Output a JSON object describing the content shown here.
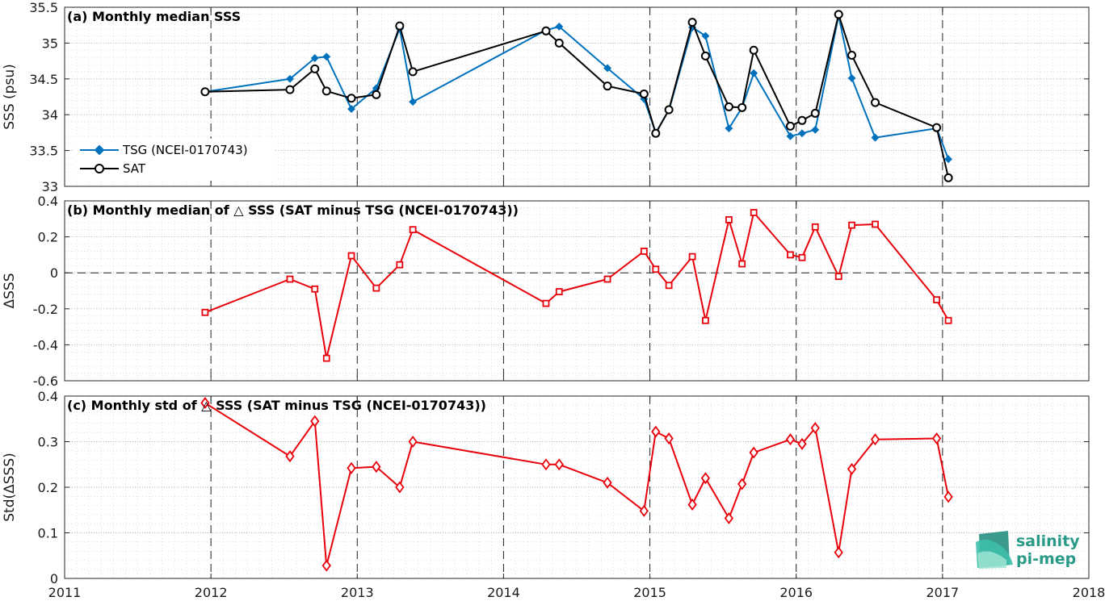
{
  "chart_data": [
    {
      "type": "line",
      "title": "(a) Monthly median SSS",
      "ylabel": "SSS (psu)",
      "xlim": [
        2011,
        2018
      ],
      "ylim": [
        33,
        35.5
      ],
      "yticks": [
        "33",
        "33.5",
        "34",
        "34.5",
        "35",
        "35.5"
      ],
      "ytick_values": [
        33,
        33.5,
        34,
        34.5,
        35,
        35.5
      ],
      "legend_position": "bottom-left",
      "series": [
        {
          "name": "TSG (NCEI-0170743)",
          "color": "#0072bd",
          "marker": "diamond",
          "x": [
            2011.96,
            2012.54,
            2012.71,
            2012.79,
            2012.96,
            2013.13,
            2013.29,
            2013.38,
            2014.29,
            2014.38,
            2014.71,
            2014.96,
            2015.04,
            2015.13,
            2015.29,
            2015.38,
            2015.54,
            2015.63,
            2015.71,
            2015.96,
            2016.04,
            2016.13,
            2016.29,
            2016.38,
            2016.54,
            2016.96,
            2017.04
          ],
          "y": [
            34.32,
            34.5,
            34.79,
            34.81,
            34.08,
            34.37,
            35.2,
            34.18,
            35.18,
            35.23,
            34.65,
            34.22,
            33.75,
            34.06,
            35.22,
            35.1,
            33.81,
            34.1,
            34.58,
            33.7,
            33.74,
            33.79,
            35.38,
            34.51,
            33.68,
            33.81,
            33.38
          ]
        },
        {
          "name": "SAT",
          "color": "#000000",
          "marker": "circle",
          "x": [
            2011.96,
            2012.54,
            2012.71,
            2012.79,
            2012.96,
            2013.13,
            2013.29,
            2013.38,
            2014.29,
            2014.38,
            2014.71,
            2014.96,
            2015.04,
            2015.13,
            2015.29,
            2015.38,
            2015.54,
            2015.63,
            2015.71,
            2015.96,
            2016.04,
            2016.13,
            2016.29,
            2016.38,
            2016.54,
            2016.96,
            2017.04
          ],
          "y": [
            34.32,
            34.35,
            34.64,
            34.33,
            34.23,
            34.28,
            35.24,
            34.6,
            35.17,
            35.0,
            34.4,
            34.29,
            33.74,
            34.07,
            35.29,
            34.82,
            34.11,
            34.1,
            34.9,
            33.84,
            33.92,
            34.02,
            35.4,
            34.83,
            34.17,
            33.82,
            33.12
          ]
        }
      ]
    },
    {
      "type": "line",
      "title": "(b) Monthly median of △ SSS (SAT minus TSG (NCEI-0170743))",
      "ylabel": "ΔSSS",
      "xlim": [
        2011,
        2018
      ],
      "ylim": [
        -0.6,
        0.4
      ],
      "yticks": [
        "-0.6",
        "-0.4",
        "-0.2",
        "0",
        "0.2",
        "0.4"
      ],
      "ytick_values": [
        -0.6,
        -0.4,
        -0.2,
        0,
        0.2,
        0.4
      ],
      "zero_line": true,
      "series": [
        {
          "name": "",
          "color": "#e8000b",
          "marker": "square",
          "x": [
            2011.96,
            2012.54,
            2012.71,
            2012.79,
            2012.96,
            2013.13,
            2013.29,
            2013.38,
            2014.29,
            2014.38,
            2014.71,
            2014.96,
            2015.04,
            2015.13,
            2015.29,
            2015.38,
            2015.54,
            2015.63,
            2015.71,
            2015.96,
            2016.04,
            2016.13,
            2016.29,
            2016.38,
            2016.54,
            2016.96,
            2017.04
          ],
          "y": [
            -0.22,
            -0.035,
            -0.09,
            -0.475,
            0.095,
            -0.085,
            0.045,
            0.24,
            -0.17,
            -0.105,
            -0.035,
            0.12,
            0.02,
            -0.07,
            0.09,
            -0.265,
            0.295,
            0.05,
            0.335,
            0.1,
            0.085,
            0.255,
            -0.02,
            0.265,
            0.27,
            -0.15,
            -0.265
          ]
        }
      ]
    },
    {
      "type": "line",
      "title": "(c) Monthly std of △ SSS (SAT minus TSG (NCEI-0170743))",
      "ylabel": "Std(ΔSSS)",
      "xlim": [
        2011,
        2018
      ],
      "ylim": [
        0,
        0.4
      ],
      "yticks": [
        "0",
        "0.1",
        "0.2",
        "0.3",
        "0.4"
      ],
      "ytick_values": [
        0,
        0.1,
        0.2,
        0.3,
        0.4
      ],
      "xticks": [
        "2011",
        "2012",
        "2013",
        "2014",
        "2015",
        "2016",
        "2017",
        "2018"
      ],
      "xtick_values": [
        2011,
        2012,
        2013,
        2014,
        2015,
        2016,
        2017,
        2018
      ],
      "series": [
        {
          "name": "",
          "color": "#e8000b",
          "marker": "diamond-open",
          "x": [
            2011.96,
            2012.54,
            2012.71,
            2012.79,
            2012.96,
            2013.13,
            2013.29,
            2013.38,
            2014.29,
            2014.38,
            2014.71,
            2014.96,
            2015.04,
            2015.13,
            2015.29,
            2015.38,
            2015.54,
            2015.63,
            2015.71,
            2015.96,
            2016.04,
            2016.13,
            2016.29,
            2016.38,
            2016.54,
            2016.96,
            2017.04
          ],
          "y": [
            0.385,
            0.268,
            0.345,
            0.028,
            0.242,
            0.245,
            0.2,
            0.3,
            0.25,
            0.25,
            0.21,
            0.148,
            0.322,
            0.307,
            0.162,
            0.22,
            0.132,
            0.207,
            0.276,
            0.305,
            0.295,
            0.33,
            0.057,
            0.24,
            0.305,
            0.307,
            0.179
          ]
        }
      ]
    }
  ],
  "logo": {
    "line1": "salinity",
    "line2": "pi-mep",
    "color": "#2a9a88"
  }
}
